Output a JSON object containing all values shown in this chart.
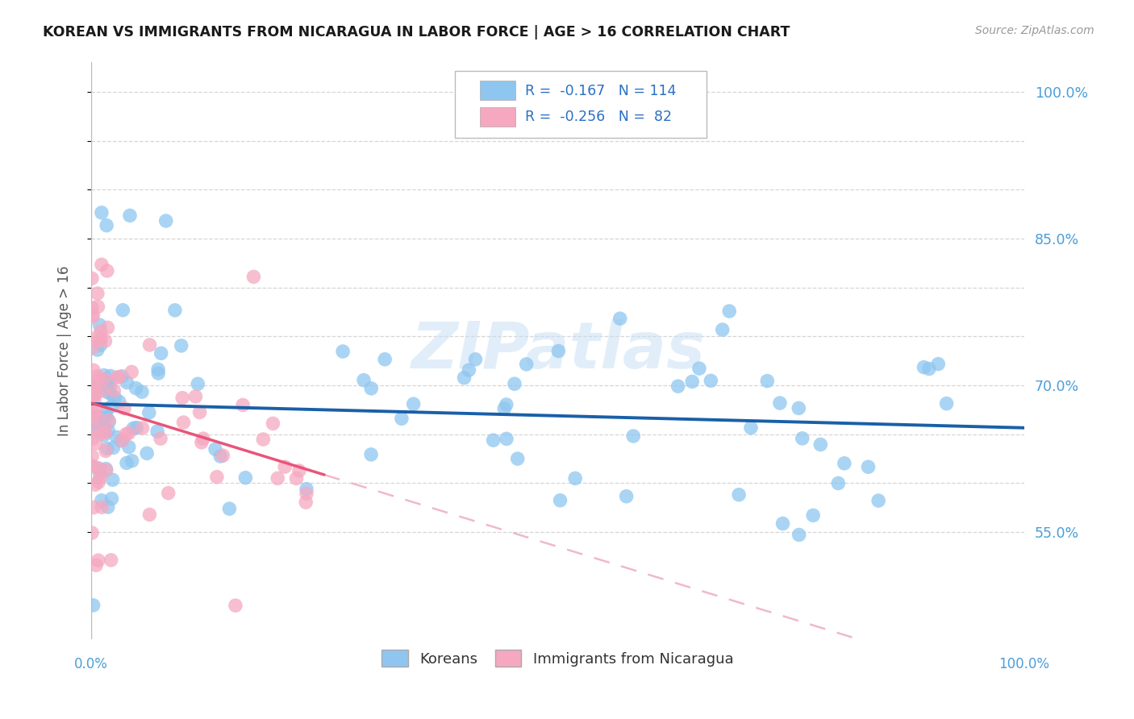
{
  "title": "KOREAN VS IMMIGRANTS FROM NICARAGUA IN LABOR FORCE | AGE > 16 CORRELATION CHART",
  "source": "Source: ZipAtlas.com",
  "ylabel": "In Labor Force | Age > 16",
  "y_ticks": [
    0.55,
    0.6,
    0.65,
    0.7,
    0.75,
    0.8,
    0.85,
    0.9,
    0.95,
    1.0
  ],
  "y_tick_labels_right": [
    "55.0%",
    "",
    "",
    "70.0%",
    "",
    "",
    "85.0%",
    "",
    "",
    "100.0%"
  ],
  "x_range": [
    0.0,
    1.0
  ],
  "y_range": [
    0.44,
    1.03
  ],
  "watermark": "ZIPatlas",
  "korean_color": "#8ec6f0",
  "nic_color": "#f5a8c0",
  "korean_line_color": "#1a5fa8",
  "nic_line_solid_color": "#e8557a",
  "nic_line_dash_color": "#f0b8cc",
  "background_color": "#ffffff",
  "grid_color": "#cccccc",
  "title_color": "#1a1a1a",
  "source_color": "#999999",
  "tick_label_color": "#4a9ed8",
  "ylabel_color": "#555555"
}
